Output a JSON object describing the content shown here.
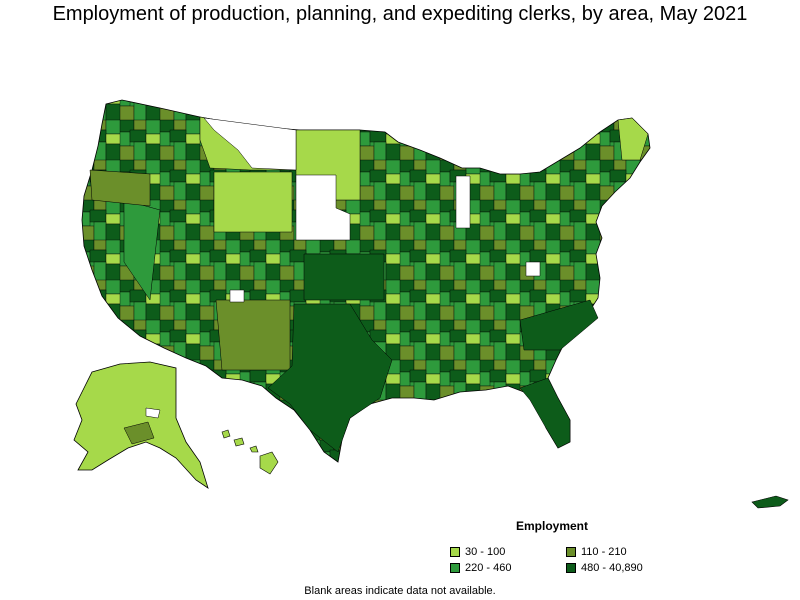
{
  "title": "Employment of production, planning, and expediting clerks, by area, May 2021",
  "legend": {
    "title": "Employment",
    "items": [
      {
        "label": "30 - 100",
        "color": "#a6d94a"
      },
      {
        "label": "110 - 210",
        "color": "#6b8f2a"
      },
      {
        "label": "220 - 460",
        "color": "#2e9a3c"
      },
      {
        "label": "480 - 40,890",
        "color": "#0d5c1a"
      }
    ]
  },
  "note": "Blank areas indicate data not available.",
  "colors": {
    "border": "#000000",
    "blank": "#ffffff",
    "background": "#ffffff"
  }
}
